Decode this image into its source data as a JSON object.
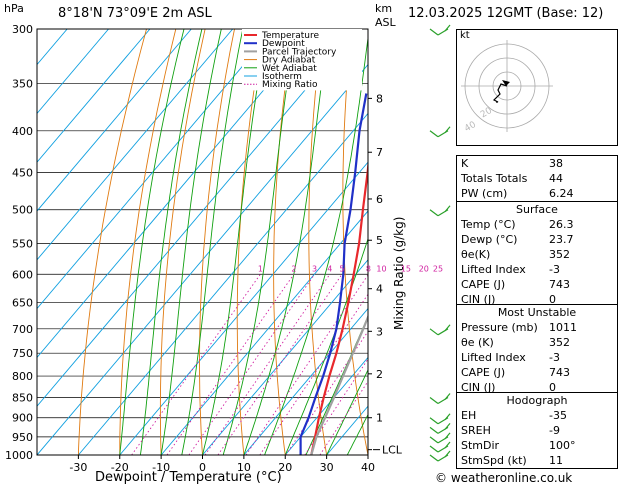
{
  "header": {
    "hpa_label": "hPa",
    "location": "8°18'N  73°09'E  2m  ASL",
    "km_label": "km",
    "asl_label": "ASL",
    "datetime": "12.03.2025  12GMT  (Base: 12)"
  },
  "legend": [
    {
      "name": "Temperature",
      "color": "#e8282c"
    },
    {
      "name": "Dewpoint",
      "color": "#2030c8"
    },
    {
      "name": "Parcel Trajectory",
      "color": "#a0a0a0"
    },
    {
      "name": "Dry Adiabat",
      "color": "#e07a10"
    },
    {
      "name": "Wet Adiabat",
      "color": "#10a010"
    },
    {
      "name": "Isotherm",
      "color": "#10a0e0"
    },
    {
      "name": "Mixing Ratio",
      "color": "#d020a0"
    }
  ],
  "chart_data": {
    "type": "line",
    "title": "",
    "xlabel": "Dewpoint / Temperature (°C)",
    "ylabel": "hPa",
    "y2label": "Mixing Ratio (g/kg)",
    "xlim": [
      -40,
      40
    ],
    "ylim": [
      1000,
      300
    ],
    "x_ticks": [
      -30,
      -20,
      -10,
      0,
      10,
      20,
      30,
      40
    ],
    "pressure_ticks": [
      300,
      350,
      400,
      450,
      500,
      550,
      600,
      650,
      700,
      750,
      800,
      850,
      900,
      950,
      1000
    ],
    "km_ticks": [
      {
        "label": "LCL",
        "p": 985
      },
      {
        "label": "1",
        "p": 900
      },
      {
        "label": "2",
        "p": 795
      },
      {
        "label": "3",
        "p": 705
      },
      {
        "label": "4",
        "p": 625
      },
      {
        "label": "5",
        "p": 545
      },
      {
        "label": "6",
        "p": 485
      },
      {
        "label": "7",
        "p": 425
      },
      {
        "label": "8",
        "p": 365
      }
    ],
    "mixing_ratio_labels": [
      "1",
      "2",
      "3",
      "4",
      "5",
      "8",
      "10",
      "15",
      "20",
      "25"
    ],
    "mixing_ratio_values": [
      1,
      2,
      3,
      4,
      5,
      8,
      10,
      15,
      20,
      25
    ],
    "series": [
      {
        "name": "Temperature",
        "color": "#e8282c",
        "p": [
          1000,
          950,
          900,
          850,
          800,
          750,
          700,
          650,
          600,
          550,
          500,
          450,
          400,
          360
        ],
        "t": [
          26.3,
          23.5,
          20.5,
          17.5,
          14.5,
          11.5,
          8.0,
          4.0,
          -0.5,
          -5.5,
          -11.5,
          -18.0,
          -25.5,
          -31.5
        ]
      },
      {
        "name": "Dewpoint",
        "color": "#2030c8",
        "p": [
          1000,
          950,
          900,
          850,
          800,
          750,
          700,
          650,
          600,
          550,
          500,
          450,
          400,
          360
        ],
        "t": [
          23.7,
          20.0,
          18.0,
          15.5,
          13.0,
          10.0,
          6.5,
          2.0,
          -3.0,
          -9.0,
          -14.5,
          -21.0,
          -28.5,
          -34.5
        ]
      },
      {
        "name": "Parcel Trajectory",
        "color": "#a0a0a0",
        "p": [
          1000,
          950,
          900,
          850,
          800,
          750,
          700,
          650,
          600,
          550,
          500,
          450,
          400,
          360
        ],
        "t": [
          26.3,
          23.8,
          22.0,
          20.0,
          17.8,
          15.5,
          13.0,
          10.2,
          7.0,
          3.2,
          -1.5,
          -7.5,
          -15.0,
          -22.0
        ]
      }
    ],
    "wind_barbs_p": [
      1000,
      975,
      950,
      925,
      900,
      850,
      700,
      500,
      400,
      300
    ]
  },
  "hodograph": {
    "label": "kt",
    "ring_labels": [
      "40",
      "20"
    ]
  },
  "indices": [
    {
      "label": "K",
      "value": "38"
    },
    {
      "label": "Totals Totals",
      "value": "44"
    },
    {
      "label": "PW (cm)",
      "value": "6.24"
    }
  ],
  "surface": {
    "title": "Surface",
    "rows": [
      {
        "label": "Temp (°C)",
        "value": "26.3"
      },
      {
        "label": "Dewp (°C)",
        "value": "23.7"
      },
      {
        "label": "θe(K)",
        "value": "352"
      },
      {
        "label": "Lifted Index",
        "value": "-3"
      },
      {
        "label": "CAPE (J)",
        "value": "743"
      },
      {
        "label": "CIN (J)",
        "value": "0"
      }
    ]
  },
  "most_unstable": {
    "title": "Most Unstable",
    "rows": [
      {
        "label": "Pressure (mb)",
        "value": "1011"
      },
      {
        "label": "θe (K)",
        "value": "352"
      },
      {
        "label": "Lifted Index",
        "value": "-3"
      },
      {
        "label": "CAPE (J)",
        "value": "743"
      },
      {
        "label": "CIN (J)",
        "value": "0"
      }
    ]
  },
  "hodo_table": {
    "title": "Hodograph",
    "rows": [
      {
        "label": "EH",
        "value": "-35"
      },
      {
        "label": "SREH",
        "value": "-9"
      },
      {
        "label": "StmDir",
        "value": "100°"
      },
      {
        "label": "StmSpd (kt)",
        "value": "11"
      }
    ]
  },
  "footer": {
    "copyright": "© weatheronline.co.uk"
  }
}
